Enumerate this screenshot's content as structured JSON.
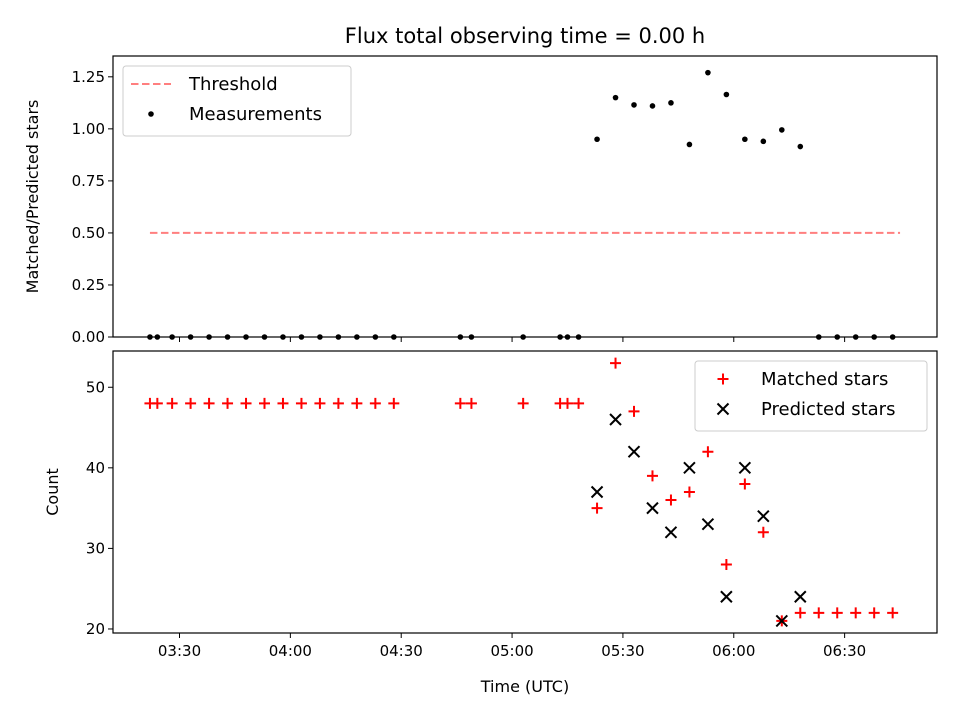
{
  "chart_data": {
    "title": "Flux total observing time = 0.00 h",
    "xlabel": "Time (UTC)",
    "xticks": [
      "03:30",
      "04:00",
      "04:30",
      "05:00",
      "05:30",
      "06:00",
      "06:30"
    ],
    "xlim": [
      "03:12",
      "06:55"
    ],
    "panels": [
      {
        "type": "scatter",
        "ylabel": "Matched/Predicted stars",
        "ylim": [
          0,
          1.35
        ],
        "yticks": [
          "0.00",
          "0.25",
          "0.50",
          "0.75",
          "1.00",
          "1.25"
        ],
        "legend_position": "upper-left",
        "threshold": {
          "name": "Threshold",
          "value": 0.5,
          "x_start": "03:22",
          "x_end": "06:45",
          "color": "#ff7f7f"
        },
        "series": [
          {
            "name": "Measurements",
            "color": "#000000",
            "marker": "dot",
            "points": [
              [
                "03:22",
                0
              ],
              [
                "03:24",
                0
              ],
              [
                "03:28",
                0
              ],
              [
                "03:33",
                0
              ],
              [
                "03:38",
                0
              ],
              [
                "03:43",
                0
              ],
              [
                "03:48",
                0
              ],
              [
                "03:53",
                0
              ],
              [
                "03:58",
                0
              ],
              [
                "04:03",
                0
              ],
              [
                "04:08",
                0
              ],
              [
                "04:13",
                0
              ],
              [
                "04:18",
                0
              ],
              [
                "04:23",
                0
              ],
              [
                "04:28",
                0
              ],
              [
                "04:46",
                0
              ],
              [
                "04:49",
                0
              ],
              [
                "05:03",
                0
              ],
              [
                "05:13",
                0
              ],
              [
                "05:15",
                0
              ],
              [
                "05:18",
                0
              ],
              [
                "05:23",
                0.95
              ],
              [
                "05:28",
                1.15
              ],
              [
                "05:33",
                1.115
              ],
              [
                "05:38",
                1.11
              ],
              [
                "05:43",
                1.125
              ],
              [
                "05:48",
                0.925
              ],
              [
                "05:53",
                1.27
              ],
              [
                "05:58",
                1.165
              ],
              [
                "06:03",
                0.95
              ],
              [
                "06:08",
                0.94
              ],
              [
                "06:13",
                0.995
              ],
              [
                "06:18",
                0.915
              ],
              [
                "06:23",
                0
              ],
              [
                "06:28",
                0
              ],
              [
                "06:33",
                0
              ],
              [
                "06:38",
                0
              ],
              [
                "06:43",
                0
              ]
            ]
          }
        ]
      },
      {
        "type": "scatter",
        "ylabel": "Count",
        "ylim": [
          19.5,
          54.5
        ],
        "yticks": [
          "20",
          "30",
          "40",
          "50"
        ],
        "legend_position": "upper-right",
        "series": [
          {
            "name": "Matched stars",
            "color": "#ff0000",
            "marker": "plus",
            "points": [
              [
                "03:22",
                48
              ],
              [
                "03:24",
                48
              ],
              [
                "03:28",
                48
              ],
              [
                "03:33",
                48
              ],
              [
                "03:38",
                48
              ],
              [
                "03:43",
                48
              ],
              [
                "03:48",
                48
              ],
              [
                "03:53",
                48
              ],
              [
                "03:58",
                48
              ],
              [
                "04:03",
                48
              ],
              [
                "04:08",
                48
              ],
              [
                "04:13",
                48
              ],
              [
                "04:18",
                48
              ],
              [
                "04:23",
                48
              ],
              [
                "04:28",
                48
              ],
              [
                "04:46",
                48
              ],
              [
                "04:49",
                48
              ],
              [
                "05:03",
                48
              ],
              [
                "05:13",
                48
              ],
              [
                "05:15",
                48
              ],
              [
                "05:18",
                48
              ],
              [
                "05:23",
                35
              ],
              [
                "05:28",
                53
              ],
              [
                "05:33",
                47
              ],
              [
                "05:38",
                39
              ],
              [
                "05:43",
                36
              ],
              [
                "05:48",
                37
              ],
              [
                "05:53",
                42
              ],
              [
                "05:58",
                28
              ],
              [
                "06:03",
                38
              ],
              [
                "06:08",
                32
              ],
              [
                "06:13",
                21
              ],
              [
                "06:18",
                22
              ],
              [
                "06:23",
                22
              ],
              [
                "06:28",
                22
              ],
              [
                "06:33",
                22
              ],
              [
                "06:38",
                22
              ],
              [
                "06:43",
                22
              ]
            ]
          },
          {
            "name": "Predicted stars",
            "color": "#000000",
            "marker": "x",
            "points": [
              [
                "05:23",
                37
              ],
              [
                "05:28",
                46
              ],
              [
                "05:33",
                42
              ],
              [
                "05:38",
                35
              ],
              [
                "05:43",
                32
              ],
              [
                "05:48",
                40
              ],
              [
                "05:53",
                33
              ],
              [
                "05:58",
                24
              ],
              [
                "06:03",
                40
              ],
              [
                "06:08",
                34
              ],
              [
                "06:13",
                21
              ],
              [
                "06:18",
                24
              ]
            ]
          }
        ]
      }
    ]
  }
}
